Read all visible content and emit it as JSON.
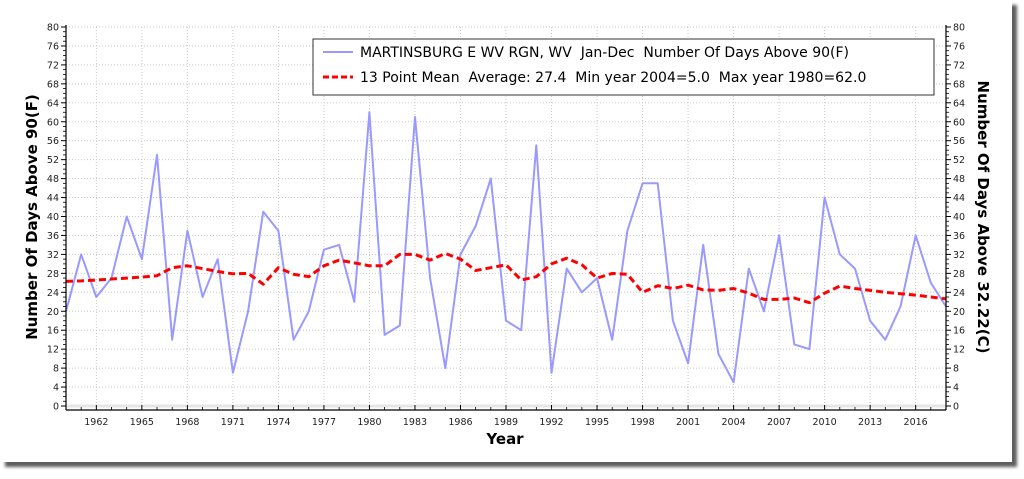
{
  "chart_data": {
    "type": "line",
    "title": "",
    "xlabel": "Year",
    "ylabel": "Number Of Days Above 90(F)",
    "ylabel_right": "Number Of Days Above 32.22(C)",
    "xlim": [
      1960,
      2018
    ],
    "ylim": [
      0,
      80
    ],
    "y_ticks": [
      0,
      4,
      8,
      12,
      16,
      20,
      24,
      28,
      32,
      36,
      40,
      44,
      48,
      52,
      56,
      60,
      64,
      68,
      72,
      76,
      80
    ],
    "x_ticks": [
      1962,
      1965,
      1968,
      1971,
      1974,
      1977,
      1980,
      1983,
      1986,
      1989,
      1992,
      1995,
      1998,
      2001,
      2004,
      2007,
      2010,
      2013,
      2016
    ],
    "grid": true,
    "legend_position": "top-right",
    "x": [
      1960,
      1961,
      1962,
      1963,
      1964,
      1965,
      1966,
      1967,
      1968,
      1969,
      1970,
      1971,
      1972,
      1973,
      1974,
      1975,
      1976,
      1977,
      1978,
      1979,
      1980,
      1981,
      1982,
      1983,
      1984,
      1985,
      1986,
      1987,
      1988,
      1989,
      1990,
      1991,
      1992,
      1993,
      1994,
      1995,
      1996,
      1997,
      1998,
      1999,
      2000,
      2001,
      2002,
      2003,
      2004,
      2005,
      2006,
      2007,
      2008,
      2009,
      2010,
      2011,
      2012,
      2013,
      2014,
      2015,
      2016,
      2017,
      2018
    ],
    "series": [
      {
        "name": "MARTINSBURG E WV RGN, WV  Jan-Dec  Number Of Days Above 90(F)",
        "color": "#9999ff",
        "style": "solid",
        "values": [
          20,
          32,
          23,
          27,
          40,
          31,
          53,
          14,
          37,
          23,
          31,
          7,
          20,
          41,
          37,
          14,
          20,
          33,
          34,
          22,
          62,
          15,
          17,
          61,
          27,
          8,
          32,
          38,
          48,
          18,
          16,
          55,
          7,
          29,
          24,
          27,
          14,
          37,
          47,
          47,
          18,
          9,
          34,
          11,
          5,
          29,
          20,
          36,
          13,
          12,
          44,
          32,
          29,
          18,
          14,
          21,
          36,
          26,
          21
        ]
      },
      {
        "name": "13 Point Mean  Average: 27.4  Min year 2004=5.0  Max year 1980=62.0",
        "color": "#ff0000",
        "style": "dashed",
        "values": [
          26.3,
          26.4,
          26.6,
          26.8,
          27.0,
          27.2,
          27.5,
          29.2,
          29.6,
          29.0,
          28.4,
          27.9,
          28.0,
          25.7,
          29.2,
          27.8,
          27.3,
          29.6,
          30.8,
          30.2,
          29.6,
          29.6,
          32.0,
          32.0,
          30.8,
          32.2,
          31.0,
          28.6,
          29.2,
          29.8,
          26.6,
          27.3,
          30.0,
          31.2,
          29.8,
          27.0,
          28.0,
          27.8,
          24.0,
          25.4,
          24.8,
          25.5,
          24.5,
          24.4,
          24.8,
          23.8,
          22.5,
          22.5,
          22.8,
          21.8,
          23.8,
          25.3,
          24.8,
          24.4,
          24.0,
          23.7,
          23.4,
          23.0,
          22.6
        ]
      }
    ]
  }
}
